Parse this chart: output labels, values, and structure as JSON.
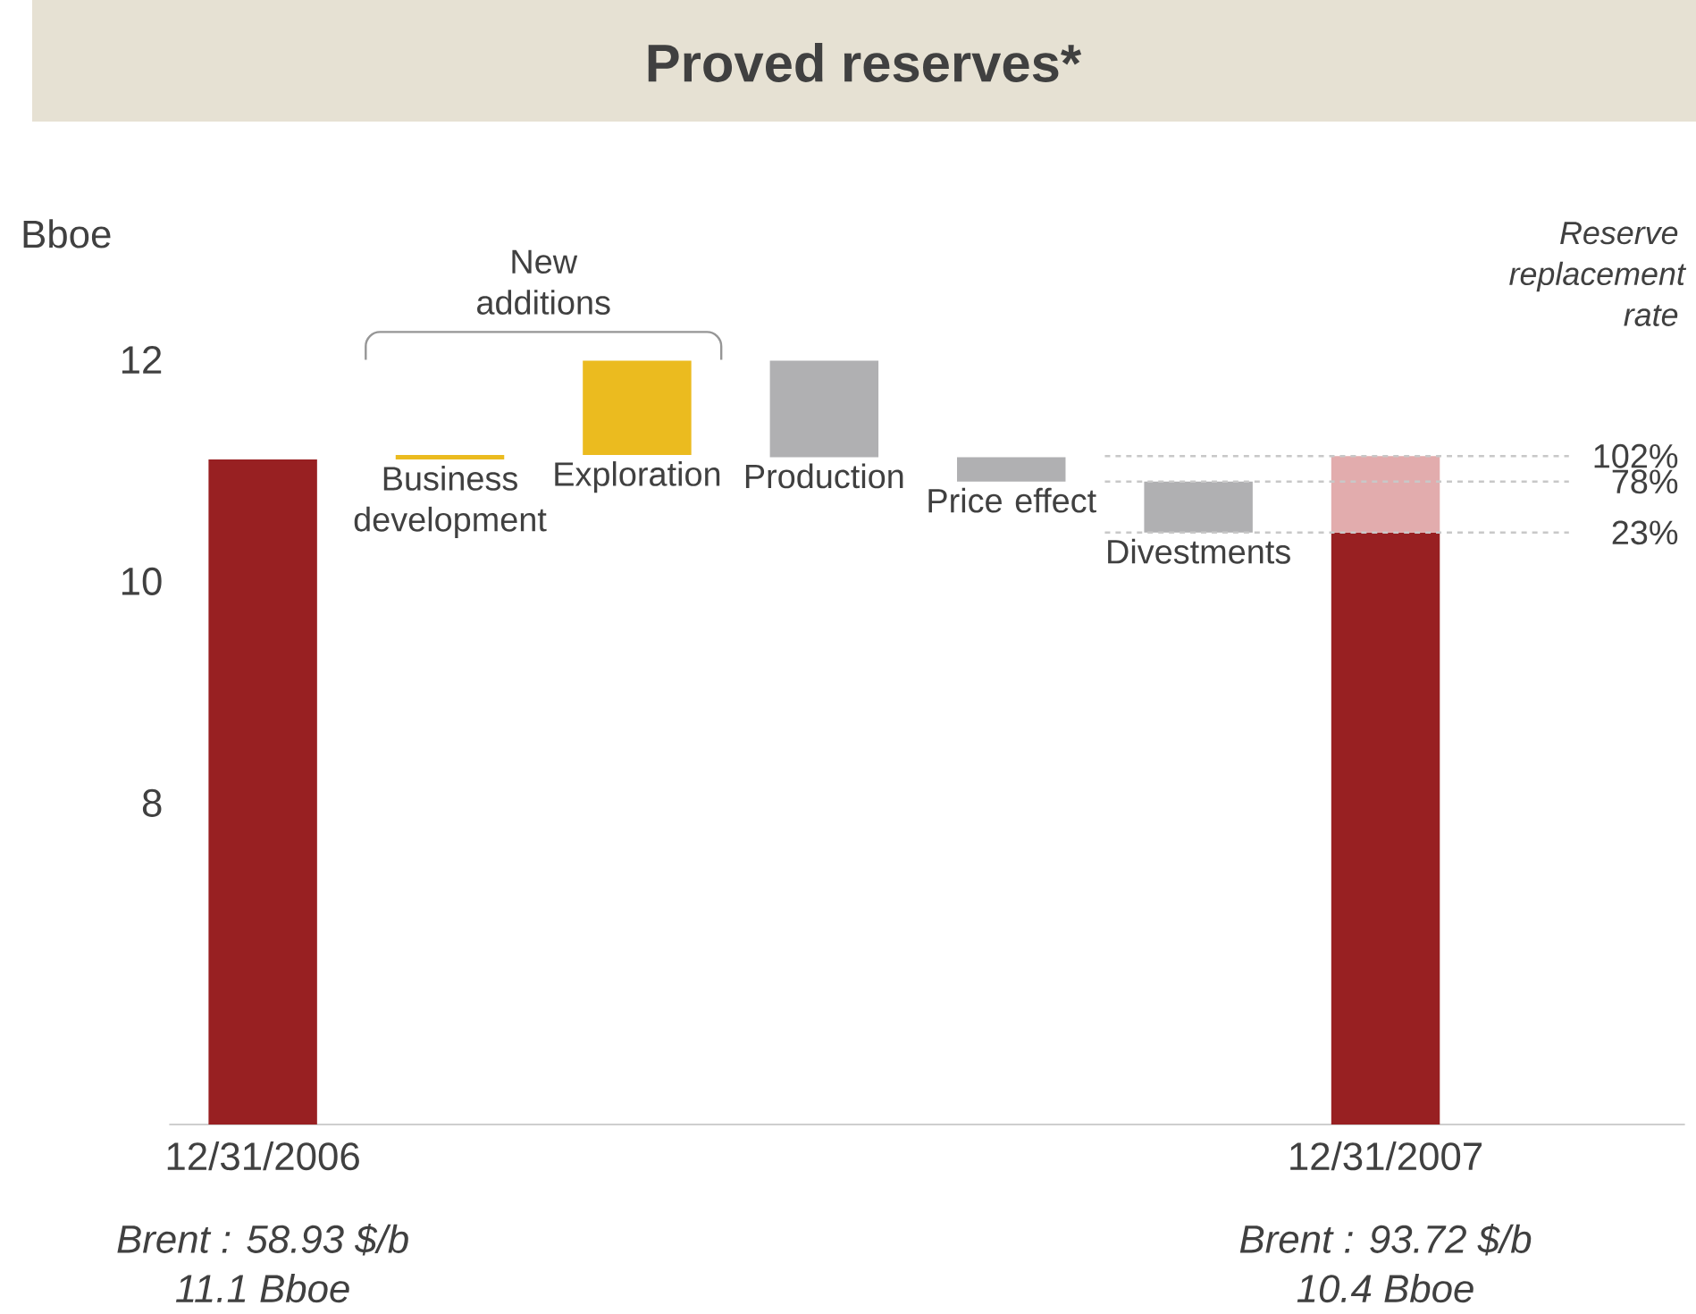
{
  "chart_data": {
    "type": "bar",
    "title": "Proved reserves*",
    "ylabel": "Bboe",
    "categories": [
      "12/31/2006",
      "Business development",
      "Exploration",
      "Production",
      "Price effect",
      "Divestments",
      "12/31/2007"
    ],
    "series": [
      {
        "values": [
          11.1,
          0.04,
          0.85,
          -0.87,
          -0.22,
          -0.46,
          10.44
        ],
        "base": [
          null,
          11.1,
          11.14,
          11.99,
          11.12,
          10.9,
          null
        ],
        "colors": [
          "#982022",
          "#ebbb1f",
          "#ebbb1f",
          "#b0b0b2",
          "#b0b0b2",
          "#b0b0b2",
          "#982022"
        ]
      },
      {
        "values": [
          null,
          null,
          null,
          null,
          null,
          null,
          0.69
        ],
        "base": [
          null,
          null,
          null,
          null,
          null,
          null,
          10.44
        ],
        "color": "#e2acad"
      }
    ],
    "ylim": [
      5.1,
      12
    ],
    "yticks": [
      8,
      10,
      12
    ],
    "grid": false,
    "ref_lines": [
      {
        "axis": "y",
        "value": 11.13,
        "color": "#c8c8c8",
        "line_style": "dashed"
      },
      {
        "axis": "y",
        "value": 10.9,
        "color": "#c8c8c8",
        "line_style": "dashed"
      },
      {
        "axis": "y",
        "value": 10.44,
        "color": "#c8c8c8",
        "line_style": "dashed"
      }
    ],
    "annotations": [
      "Reserve replacement rate",
      "New additions",
      "Brent : 58.93 $/b",
      "11.1 Bboe",
      "Brent : 93.72 $/b",
      "10.4 Bboe",
      "102%",
      "78%",
      "23%"
    ]
  }
}
